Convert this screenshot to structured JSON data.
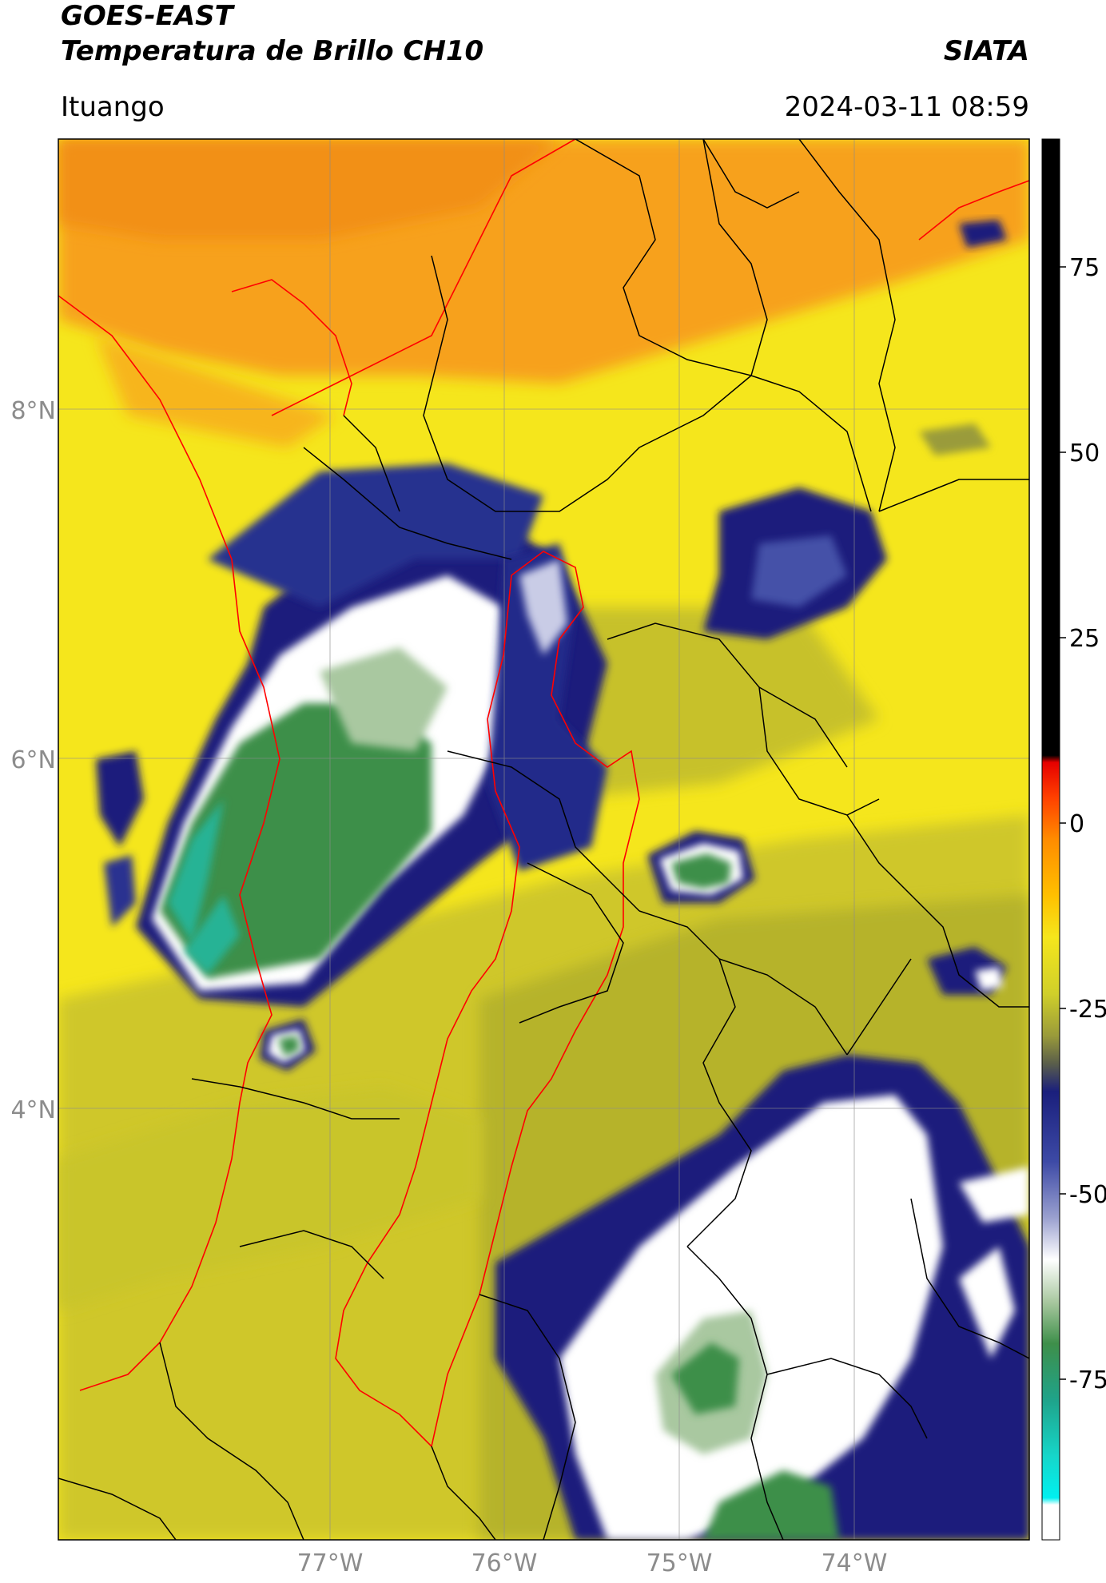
{
  "header": {
    "satellite": "GOES-EAST",
    "product": "Temperatura de Brillo CH10",
    "brand": "SIATA",
    "region": "Ituango",
    "datetime": "2024-03-11 08:59"
  },
  "map": {
    "lat_labels": [
      "8°N",
      "6°N",
      "4°N"
    ],
    "lon_labels": [
      "77°W",
      "76°W",
      "75°W",
      "74°W"
    ],
    "colors": {
      "warm_orange": "#f7a11a",
      "yellow": "#f5e61c",
      "olive": "#b3b52c",
      "navy": "#1a1f7c",
      "white": "#ffffff",
      "green": "#2f7d3c",
      "teal": "#26b395",
      "border_black": "#000000",
      "border_red": "#ff0000",
      "grid": "#8c8c8c"
    }
  },
  "colorbar": {
    "ticks": [
      "75",
      "50",
      "25",
      "0",
      "-25",
      "-50",
      "-75"
    ]
  }
}
